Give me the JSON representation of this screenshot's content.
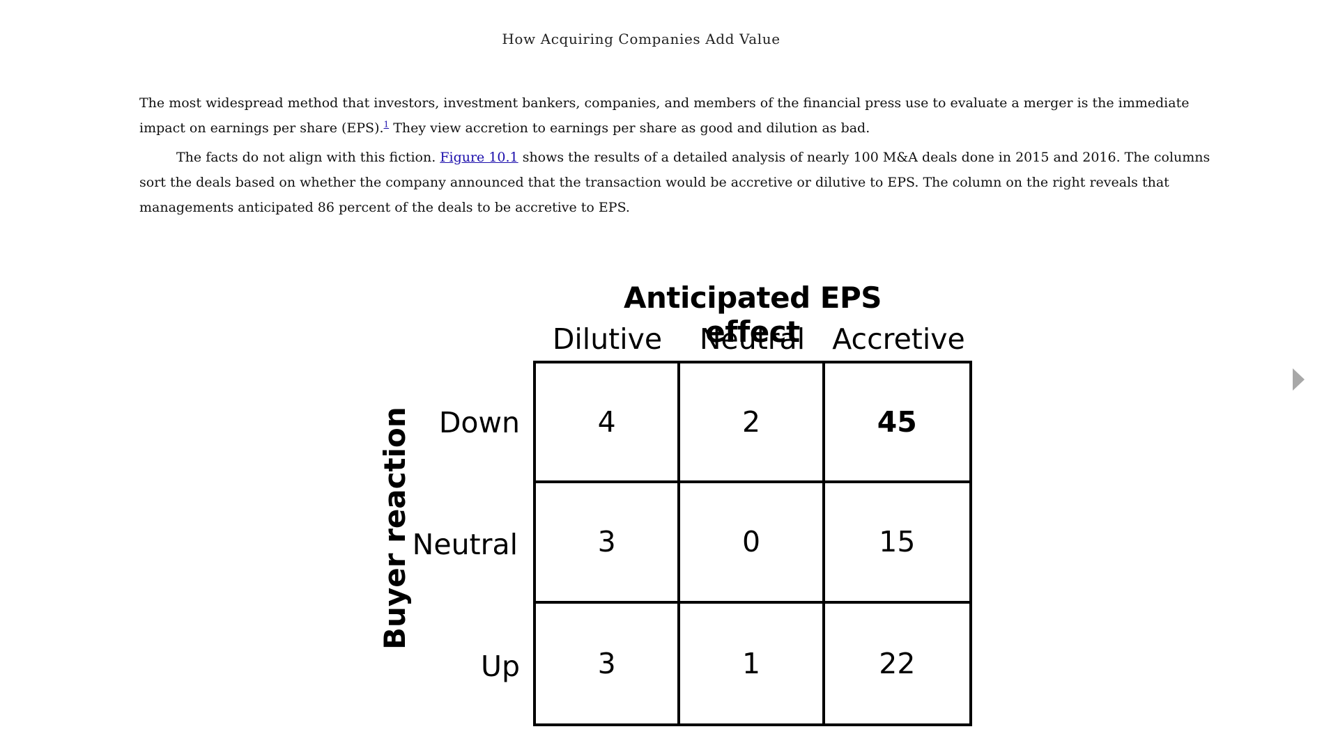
{
  "header": {
    "running_title": "How Acquiring Companies Add Value"
  },
  "text": {
    "p1_text": "The most widespread method that investors, investment bankers, companies, and members of the financial press use to evaluate a merger is the immediate impact on earnings per share (EPS).",
    "p1_footnote": "1",
    "p1_after": " They view accretion to earnings per share as good and dilution as bad.",
    "p2_before": "The facts do not align with this fiction. ",
    "p2_link": "Figure 10.1",
    "p2_after": " shows the results of a detailed analysis of nearly 100 M&A deals done in 2015 and 2016. The columns sort the deals based on whether the company announced that the transaction would be accretive or dilutive to EPS. The column on the right reveals that managements anticipated 86 percent of the deals to be accretive to EPS."
  },
  "figure": {
    "title": "Anticipated EPS effect",
    "row_axis_label": "Buyer reaction",
    "columns": [
      "Dilutive",
      "Neutral",
      "Accretive"
    ],
    "rows": [
      "Down",
      "Neutral",
      "Up"
    ],
    "cells": [
      [
        "4",
        "2",
        "45"
      ],
      [
        "3",
        "0",
        "15"
      ],
      [
        "3",
        "1",
        "22"
      ]
    ],
    "bold_cell": "45"
  },
  "chart_data": {
    "type": "table",
    "title": "Anticipated EPS effect",
    "xlabel": "Anticipated EPS effect",
    "ylabel": "Buyer reaction",
    "columns": [
      "Dilutive",
      "Neutral",
      "Accretive"
    ],
    "rows": [
      "Down",
      "Neutral",
      "Up"
    ],
    "values": [
      [
        4,
        2,
        45
      ],
      [
        3,
        0,
        15
      ],
      [
        3,
        1,
        22
      ]
    ]
  },
  "navigation": {
    "next_page_icon": "triangle-right-icon",
    "next_page_color": "#a8a8a8"
  }
}
